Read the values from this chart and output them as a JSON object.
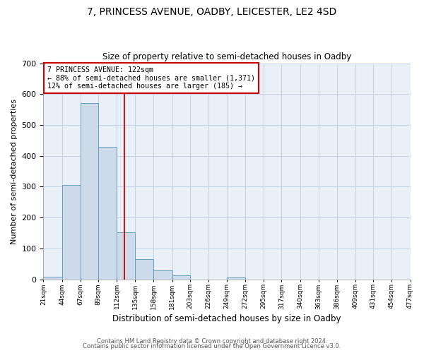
{
  "title": "7, PRINCESS AVENUE, OADBY, LEICESTER, LE2 4SD",
  "subtitle": "Size of property relative to semi-detached houses in Oadby",
  "xlabel": "Distribution of semi-detached houses by size in Oadby",
  "ylabel": "Number of semi-detached properties",
  "bin_edges": [
    21,
    44,
    67,
    89,
    112,
    135,
    158,
    181,
    203,
    226,
    249,
    272,
    295,
    317,
    340,
    363,
    386,
    409,
    431,
    454,
    477
  ],
  "bin_counts": [
    8,
    305,
    572,
    428,
    152,
    65,
    28,
    12,
    0,
    0,
    5,
    0,
    0,
    0,
    0,
    0,
    0,
    0,
    0,
    0
  ],
  "bar_facecolor": "#cddaea",
  "bar_edgecolor": "#6a9fc0",
  "grid_color": "#c5d5e5",
  "background_color": "#eaf0f8",
  "property_size": 122,
  "vline_color": "#cc0000",
  "annotation_line1": "7 PRINCESS AVENUE: 122sqm",
  "annotation_line2": "← 88% of semi-detached houses are smaller (1,371)",
  "annotation_line3": "12% of semi-detached houses are larger (185) →",
  "annotation_box_edgecolor": "#cc0000",
  "ylim": [
    0,
    700
  ],
  "yticks": [
    0,
    100,
    200,
    300,
    400,
    500,
    600,
    700
  ],
  "footer1": "Contains HM Land Registry data © Crown copyright and database right 2024.",
  "footer2": "Contains public sector information licensed under the Open Government Licence v3.0."
}
